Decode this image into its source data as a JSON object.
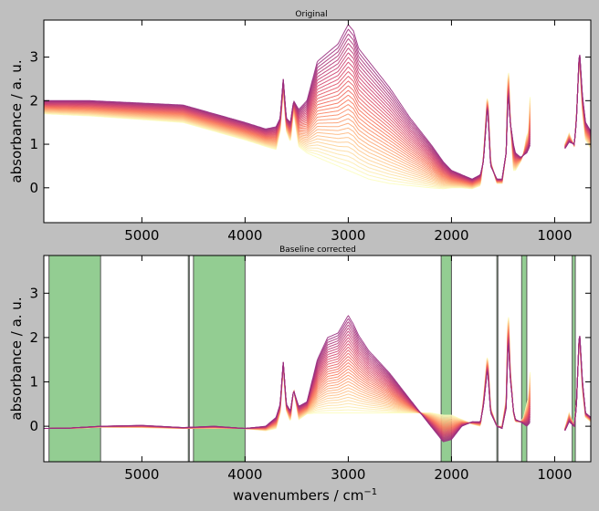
{
  "figure": {
    "background": "#bfbfbf",
    "xlabel_main": "wavenumbers / cm",
    "xlabel_sup": "−1"
  },
  "chart_data": [
    {
      "type": "line",
      "title": "Original",
      "ylabel": "absorbance / a. u.",
      "xlim": [
        5950,
        650
      ],
      "ylim": [
        -0.8,
        3.85
      ],
      "x_inverted": true,
      "xticks": [
        5000,
        4000,
        3000,
        2000,
        1000
      ],
      "yticks": [
        0,
        1,
        2,
        3
      ],
      "n_series": 32,
      "colormap": "magma (reversed)",
      "colormap_stops": [
        "#fcfdbf",
        "#feba80",
        "#f8765c",
        "#d3436e",
        "#982d80"
      ],
      "segments": [
        [
          5950,
          1235
        ],
        [
          900,
          650
        ]
      ],
      "profile_anchors": {
        "x": [
          5950,
          5500,
          4600,
          4000,
          3800,
          3700,
          3660,
          3630,
          3600,
          3560,
          3530,
          3480,
          3400,
          3300,
          3200,
          3100,
          3000,
          2950,
          2900,
          2800,
          2600,
          2400,
          2200,
          2080,
          2000,
          1900,
          1800,
          1720,
          1690,
          1650,
          1620,
          1560,
          1510,
          1470,
          1450,
          1430,
          1400,
          1380,
          1330,
          1300,
          1270,
          1250,
          1235,
          900,
          860,
          810,
          790,
          760,
          730,
          700,
          650
        ],
        "first_curve": [
          1.7,
          1.65,
          1.5,
          1.1,
          0.95,
          0.88,
          1.3,
          2.25,
          1.3,
          1.05,
          1.75,
          0.95,
          0.8,
          0.7,
          0.6,
          0.5,
          0.4,
          0.35,
          0.3,
          0.2,
          0.1,
          0.05,
          0.0,
          -0.02,
          0.0,
          0.0,
          -0.02,
          0.05,
          0.7,
          2.2,
          0.6,
          0.1,
          0.1,
          0.8,
          2.9,
          1.6,
          0.4,
          0.4,
          0.6,
          0.8,
          1.2,
          1.3,
          2.28,
          1.0,
          1.25,
          0.95,
          1.6,
          3.0,
          1.7,
          1.1,
          0.9
        ],
        "last_curve": [
          2.0,
          2.0,
          1.9,
          1.5,
          1.35,
          1.4,
          1.6,
          2.5,
          1.6,
          1.5,
          2.0,
          1.8,
          2.0,
          2.9,
          3.1,
          3.3,
          3.75,
          3.6,
          3.2,
          2.9,
          2.3,
          1.6,
          1.0,
          0.6,
          0.4,
          0.3,
          0.2,
          0.3,
          0.6,
          1.9,
          0.5,
          0.2,
          0.2,
          0.8,
          2.2,
          1.5,
          1.0,
          0.8,
          0.7,
          0.75,
          0.8,
          0.9,
          1.0,
          0.9,
          1.05,
          1.0,
          1.5,
          3.2,
          2.1,
          1.5,
          1.3
        ]
      }
    },
    {
      "type": "line",
      "title": "Baseline corrected",
      "ylabel": "absorbance / a. u.",
      "xlabel": "wavenumbers / cm−1",
      "xlim": [
        5950,
        650
      ],
      "ylim": [
        -0.8,
        3.85
      ],
      "x_inverted": true,
      "xticks": [
        5000,
        4000,
        3000,
        2000,
        1000
      ],
      "yticks": [
        0,
        1,
        2,
        3
      ],
      "n_series": 32,
      "colormap": "magma (reversed)",
      "colormap_stops": [
        "#fcfdbf",
        "#feba80",
        "#f8765c",
        "#d3436e",
        "#982d80"
      ],
      "segments": [
        [
          5950,
          1235
        ],
        [
          900,
          650
        ]
      ],
      "baseline_regions": {
        "color": "#93cd92",
        "edge_color": "#555555",
        "ranges": [
          [
            5900,
            5400
          ],
          [
            4550,
            4540
          ],
          [
            4500,
            4000
          ],
          [
            2100,
            2000
          ],
          [
            1560,
            1550
          ],
          [
            1320,
            1270
          ],
          [
            830,
            800
          ]
        ]
      },
      "profile_anchors": {
        "x": [
          5950,
          5700,
          5400,
          5000,
          4600,
          4300,
          4000,
          3800,
          3700,
          3660,
          3630,
          3600,
          3560,
          3530,
          3480,
          3400,
          3300,
          3200,
          3100,
          3000,
          2950,
          2900,
          2800,
          2600,
          2400,
          2200,
          2080,
          2000,
          1900,
          1800,
          1720,
          1690,
          1650,
          1620,
          1560,
          1510,
          1470,
          1450,
          1430,
          1400,
          1380,
          1330,
          1300,
          1270,
          1250,
          1235,
          900,
          860,
          810,
          790,
          760,
          730,
          700,
          650
        ],
        "first_curve": [
          -0.05,
          -0.05,
          -0.02,
          -0.03,
          -0.05,
          -0.05,
          -0.05,
          -0.1,
          -0.05,
          0.3,
          1.35,
          0.35,
          0.1,
          0.85,
          0.15,
          0.28,
          0.3,
          0.3,
          0.3,
          0.3,
          0.3,
          0.3,
          0.3,
          0.3,
          0.3,
          0.3,
          0.25,
          0.25,
          0.15,
          0.05,
          0.0,
          0.6,
          1.65,
          0.4,
          0.0,
          0.0,
          0.6,
          2.75,
          1.3,
          0.3,
          0.1,
          0.1,
          0.2,
          0.5,
          0.7,
          1.35,
          -0.05,
          0.3,
          0.0,
          0.5,
          2.05,
          0.8,
          0.2,
          0.1
        ],
        "last_curve": [
          -0.05,
          -0.04,
          0.0,
          0.02,
          -0.03,
          0.0,
          -0.05,
          0.0,
          0.2,
          0.5,
          1.45,
          0.5,
          0.35,
          0.8,
          0.45,
          0.55,
          1.5,
          2.0,
          2.1,
          2.5,
          2.3,
          2.05,
          1.7,
          1.2,
          0.6,
          0.0,
          -0.35,
          -0.3,
          0.0,
          0.1,
          0.1,
          0.45,
          1.3,
          0.3,
          0.0,
          -0.05,
          0.4,
          2.0,
          1.1,
          0.35,
          0.15,
          0.1,
          0.05,
          0.0,
          0.05,
          0.1,
          -0.1,
          0.1,
          0.0,
          0.4,
          2.2,
          1.0,
          0.3,
          0.2
        ]
      }
    }
  ]
}
